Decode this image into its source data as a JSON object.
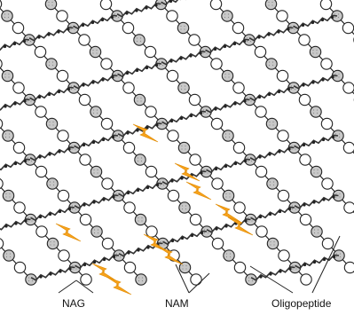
{
  "labels": {
    "nag": "NAG",
    "nam": "NAM",
    "oligopeptide": "Oligopeptide"
  },
  "colors": {
    "background": "#ffffff",
    "strand": "#222222",
    "nag_fill": "#ffffff",
    "nam_fill": "#c8c8c8",
    "lightning": "#f7a21b",
    "peptide": "#333333"
  },
  "icons": {
    "nag": "white-circle",
    "nam": "gray-shaded-circle",
    "peptide": "twisted-chain-crosslink",
    "lysozyme_cut": "lightning-bolt"
  }
}
